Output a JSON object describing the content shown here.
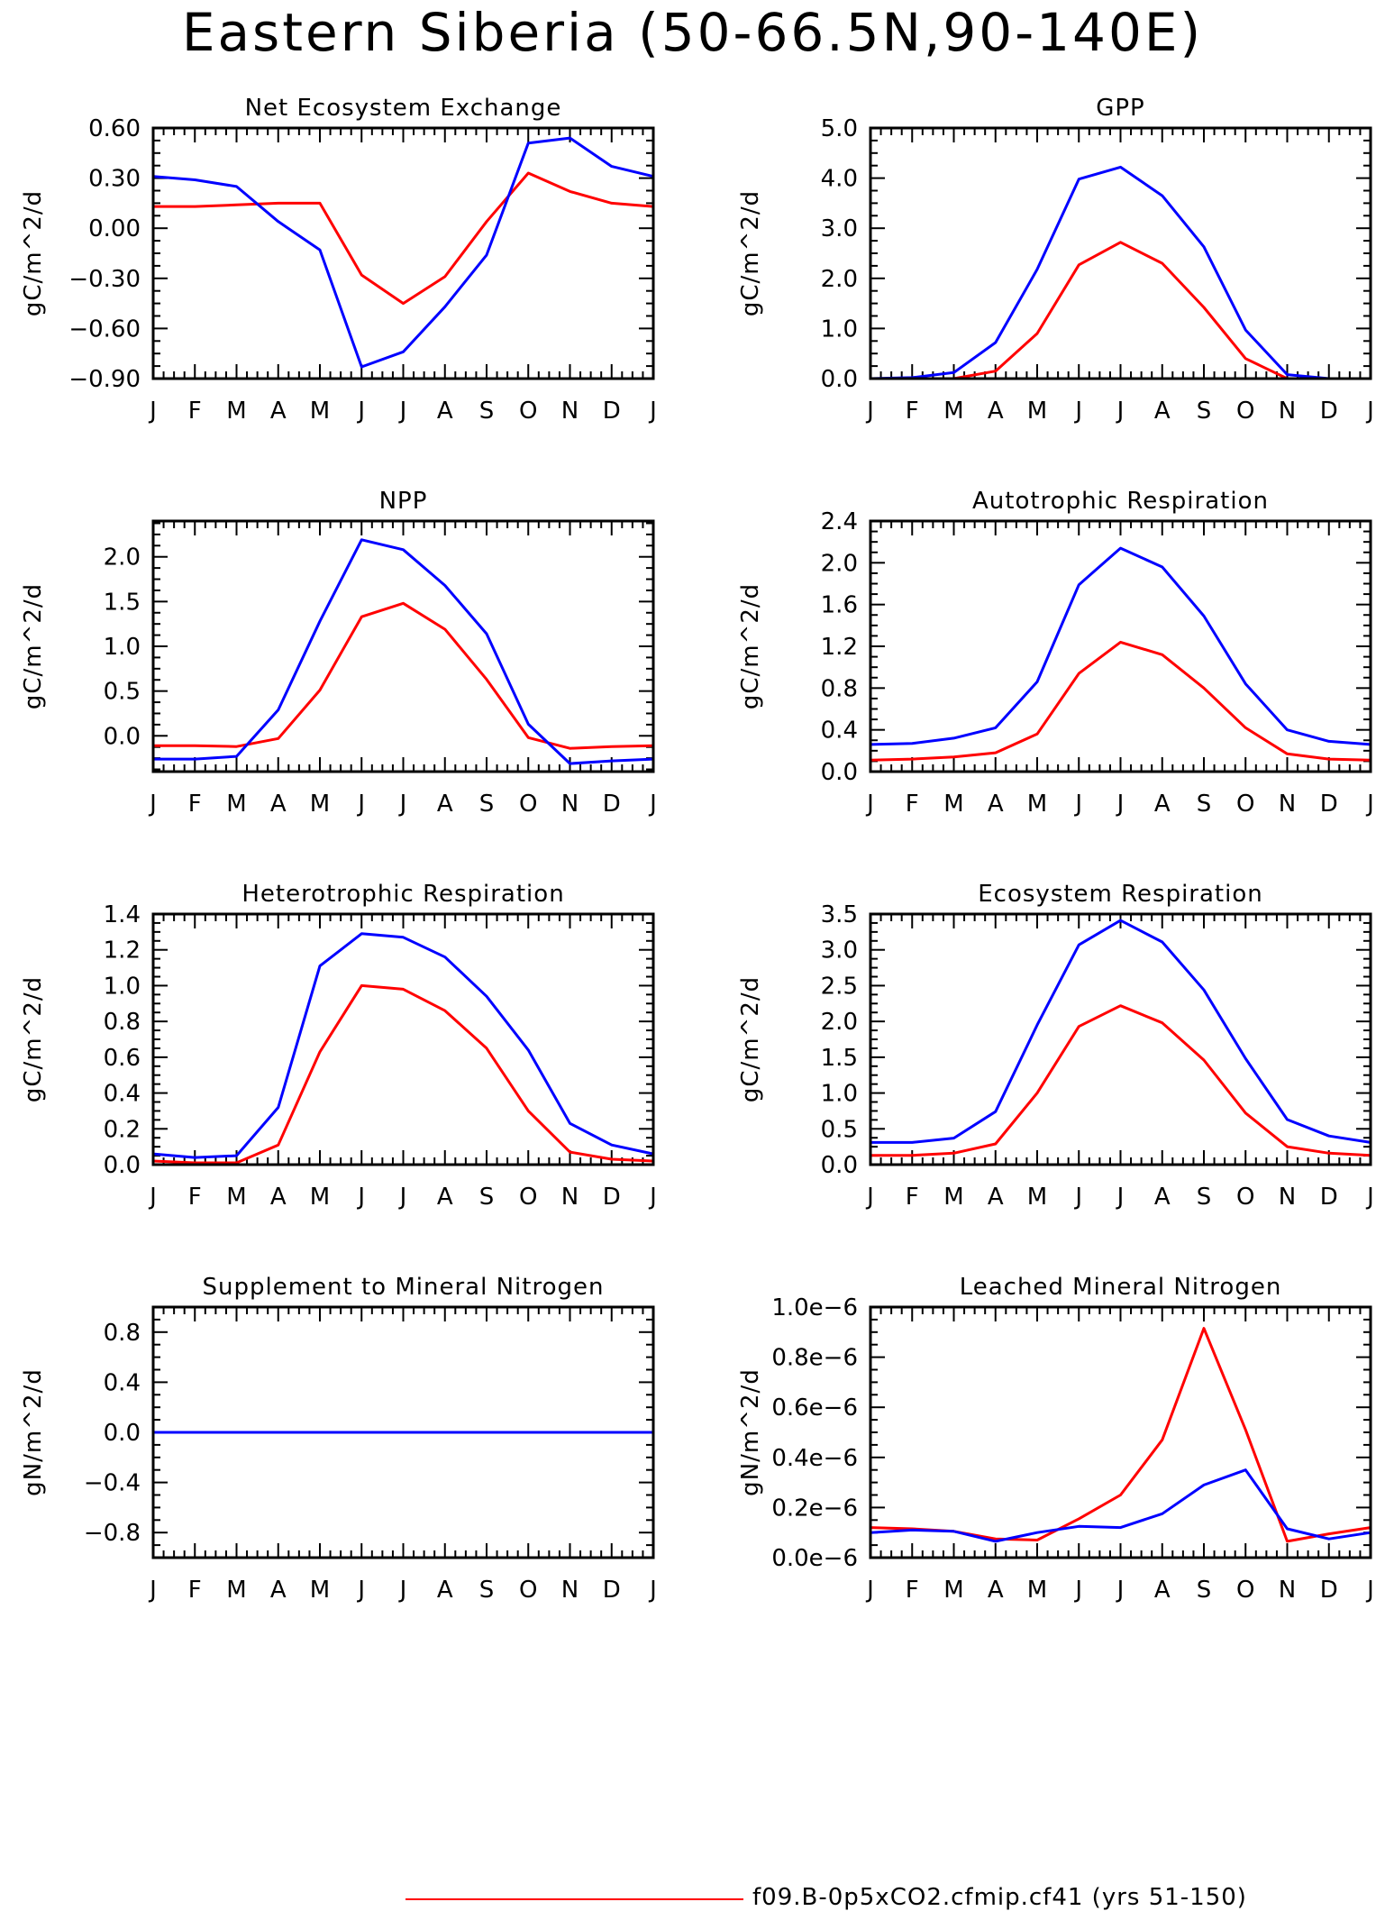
{
  "title": "Eastern Siberia (50-66.5N,90-140E)",
  "colors": {
    "series_1": "#ff0000",
    "series_2": "#0000ff",
    "axis": "#000000"
  },
  "legend": {
    "entries": [
      {
        "label": "f09.B-0p5xCO2.cfmip.cf41 (yrs 51-150)",
        "color": "#ff0000"
      }
    ]
  },
  "chart_data": [
    {
      "type": "line",
      "title": "Net Ecosystem Exchange",
      "ylabel": "gC/m^2/d",
      "categories": [
        "J",
        "F",
        "M",
        "A",
        "M",
        "J",
        "J",
        "A",
        "S",
        "O",
        "N",
        "D",
        "J"
      ],
      "ylim": [
        -0.9,
        0.6
      ],
      "yticks": [
        "0.60",
        "0.30",
        "0.00",
        "-0.30",
        "-0.60",
        "-0.90"
      ],
      "series": [
        {
          "values": [
            0.13,
            0.13,
            0.14,
            0.15,
            0.15,
            -0.28,
            -0.45,
            -0.29,
            0.04,
            0.33,
            0.22,
            0.15,
            0.13
          ],
          "color": "#ff0000"
        },
        {
          "values": [
            0.31,
            0.29,
            0.25,
            0.04,
            -0.13,
            -0.83,
            -0.74,
            -0.47,
            -0.16,
            0.51,
            0.54,
            0.37,
            0.31
          ],
          "color": "#0000ff"
        }
      ]
    },
    {
      "type": "line",
      "title": "GPP",
      "ylabel": "gC/m^2/d",
      "categories": [
        "J",
        "F",
        "M",
        "A",
        "M",
        "J",
        "J",
        "A",
        "S",
        "O",
        "N",
        "D",
        "J"
      ],
      "ylim": [
        0,
        5
      ],
      "yticks": [
        "5.0",
        "4.0",
        "3.0",
        "2.0",
        "1.0",
        "0.0"
      ],
      "series": [
        {
          "values": [
            0,
            0,
            0,
            0.15,
            0.9,
            2.27,
            2.72,
            2.3,
            1.42,
            0.4,
            0,
            0,
            0
          ],
          "color": "#ff0000"
        },
        {
          "values": [
            0,
            0.02,
            0.12,
            0.72,
            2.18,
            3.98,
            4.22,
            3.65,
            2.63,
            0.97,
            0.08,
            0,
            0
          ],
          "color": "#0000ff"
        }
      ]
    },
    {
      "type": "line",
      "title": "NPP",
      "ylabel": "gC/m^2/d",
      "categories": [
        "J",
        "F",
        "M",
        "A",
        "M",
        "J",
        "J",
        "A",
        "S",
        "O",
        "N",
        "D",
        "J"
      ],
      "ylim": [
        -0.4,
        2.4
      ],
      "yticks": [
        "2.0",
        "1.5",
        "1.0",
        "0.5",
        "0.0"
      ],
      "series": [
        {
          "values": [
            -0.11,
            -0.11,
            -0.12,
            -0.03,
            0.51,
            1.33,
            1.48,
            1.19,
            0.63,
            -0.02,
            -0.14,
            -0.12,
            -0.11
          ],
          "color": "#ff0000"
        },
        {
          "values": [
            -0.26,
            -0.26,
            -0.23,
            0.29,
            1.28,
            2.19,
            2.08,
            1.68,
            1.14,
            0.13,
            -0.31,
            -0.28,
            -0.26
          ],
          "color": "#0000ff"
        }
      ]
    },
    {
      "type": "line",
      "title": "Autotrophic Respiration",
      "ylabel": "gC/m^2/d",
      "categories": [
        "J",
        "F",
        "M",
        "A",
        "M",
        "J",
        "J",
        "A",
        "S",
        "O",
        "N",
        "D",
        "J"
      ],
      "ylim": [
        0,
        2.4
      ],
      "yticks": [
        "2.4",
        "2.0",
        "1.6",
        "1.2",
        "0.8",
        "0.4",
        "0.0"
      ],
      "series": [
        {
          "values": [
            0.11,
            0.12,
            0.14,
            0.18,
            0.36,
            0.94,
            1.24,
            1.12,
            0.8,
            0.42,
            0.17,
            0.12,
            0.11
          ],
          "color": "#ff0000"
        },
        {
          "values": [
            0.26,
            0.27,
            0.32,
            0.42,
            0.86,
            1.79,
            2.14,
            1.96,
            1.49,
            0.84,
            0.4,
            0.29,
            0.26
          ],
          "color": "#0000ff"
        }
      ]
    },
    {
      "type": "line",
      "title": "Heterotrophic Respiration",
      "ylabel": "gC/m^2/d",
      "categories": [
        "J",
        "F",
        "M",
        "A",
        "M",
        "J",
        "J",
        "A",
        "S",
        "O",
        "N",
        "D",
        "J"
      ],
      "ylim": [
        0,
        1.4
      ],
      "yticks": [
        "1.4",
        "1.2",
        "1.0",
        "0.8",
        "0.6",
        "0.4",
        "0.2",
        "0.0"
      ],
      "series": [
        {
          "values": [
            0.02,
            0.01,
            0.01,
            0.11,
            0.63,
            1.0,
            0.98,
            0.86,
            0.65,
            0.3,
            0.07,
            0.03,
            0.02
          ],
          "color": "#ff0000"
        },
        {
          "values": [
            0.06,
            0.04,
            0.05,
            0.32,
            1.11,
            1.29,
            1.27,
            1.16,
            0.94,
            0.64,
            0.23,
            0.11,
            0.06
          ],
          "color": "#0000ff"
        }
      ]
    },
    {
      "type": "line",
      "title": "Ecosystem Respiration",
      "ylabel": "gC/m^2/d",
      "categories": [
        "J",
        "F",
        "M",
        "A",
        "M",
        "J",
        "J",
        "A",
        "S",
        "O",
        "N",
        "D",
        "J"
      ],
      "ylim": [
        0,
        3.5
      ],
      "yticks": [
        "3.5",
        "3.0",
        "2.5",
        "2.0",
        "1.5",
        "1.0",
        "0.5",
        "0.0"
      ],
      "series": [
        {
          "values": [
            0.13,
            0.13,
            0.16,
            0.29,
            1.0,
            1.93,
            2.22,
            1.98,
            1.46,
            0.72,
            0.25,
            0.16,
            0.13
          ],
          "color": "#ff0000"
        },
        {
          "values": [
            0.31,
            0.31,
            0.37,
            0.74,
            1.95,
            3.07,
            3.41,
            3.11,
            2.44,
            1.48,
            0.63,
            0.4,
            0.31
          ],
          "color": "#0000ff"
        }
      ]
    },
    {
      "type": "line",
      "title": "Supplement to Mineral Nitrogen",
      "ylabel": "gN/m^2/d",
      "categories": [
        "J",
        "F",
        "M",
        "A",
        "M",
        "J",
        "J",
        "A",
        "S",
        "O",
        "N",
        "D",
        "J"
      ],
      "ylim": [
        -1.0,
        1.0
      ],
      "yticks": [
        "0.8",
        "0.4",
        "0.0",
        "-0.4",
        "-0.8"
      ],
      "series": [
        {
          "values": [
            0,
            0,
            0,
            0,
            0,
            0,
            0,
            0,
            0,
            0,
            0,
            0,
            0
          ],
          "color": "#ff0000"
        },
        {
          "values": [
            0,
            0,
            0,
            0,
            0,
            0,
            0,
            0,
            0,
            0,
            0,
            0,
            0
          ],
          "color": "#0000ff"
        }
      ]
    },
    {
      "type": "line",
      "title": "Leached Mineral Nitrogen",
      "ylabel": "gN/m^2/d",
      "categories": [
        "J",
        "F",
        "M",
        "A",
        "M",
        "J",
        "J",
        "A",
        "S",
        "O",
        "N",
        "D",
        "J"
      ],
      "ylim": [
        0,
        1.0
      ],
      "yticks": [
        "1.0e-6",
        "0.8e-6",
        "0.6e-6",
        "0.4e-6",
        "0.2e-6",
        "0.0e-6"
      ],
      "value_scale": "1e-6",
      "series": [
        {
          "values": [
            0.12,
            0.115,
            0.105,
            0.075,
            0.07,
            0.155,
            0.25,
            0.47,
            0.915,
            0.51,
            0.065,
            0.095,
            0.12
          ],
          "color": "#ff0000"
        },
        {
          "values": [
            0.1,
            0.11,
            0.105,
            0.065,
            0.1,
            0.125,
            0.12,
            0.175,
            0.29,
            0.35,
            0.115,
            0.075,
            0.1
          ],
          "color": "#0000ff"
        }
      ]
    }
  ]
}
